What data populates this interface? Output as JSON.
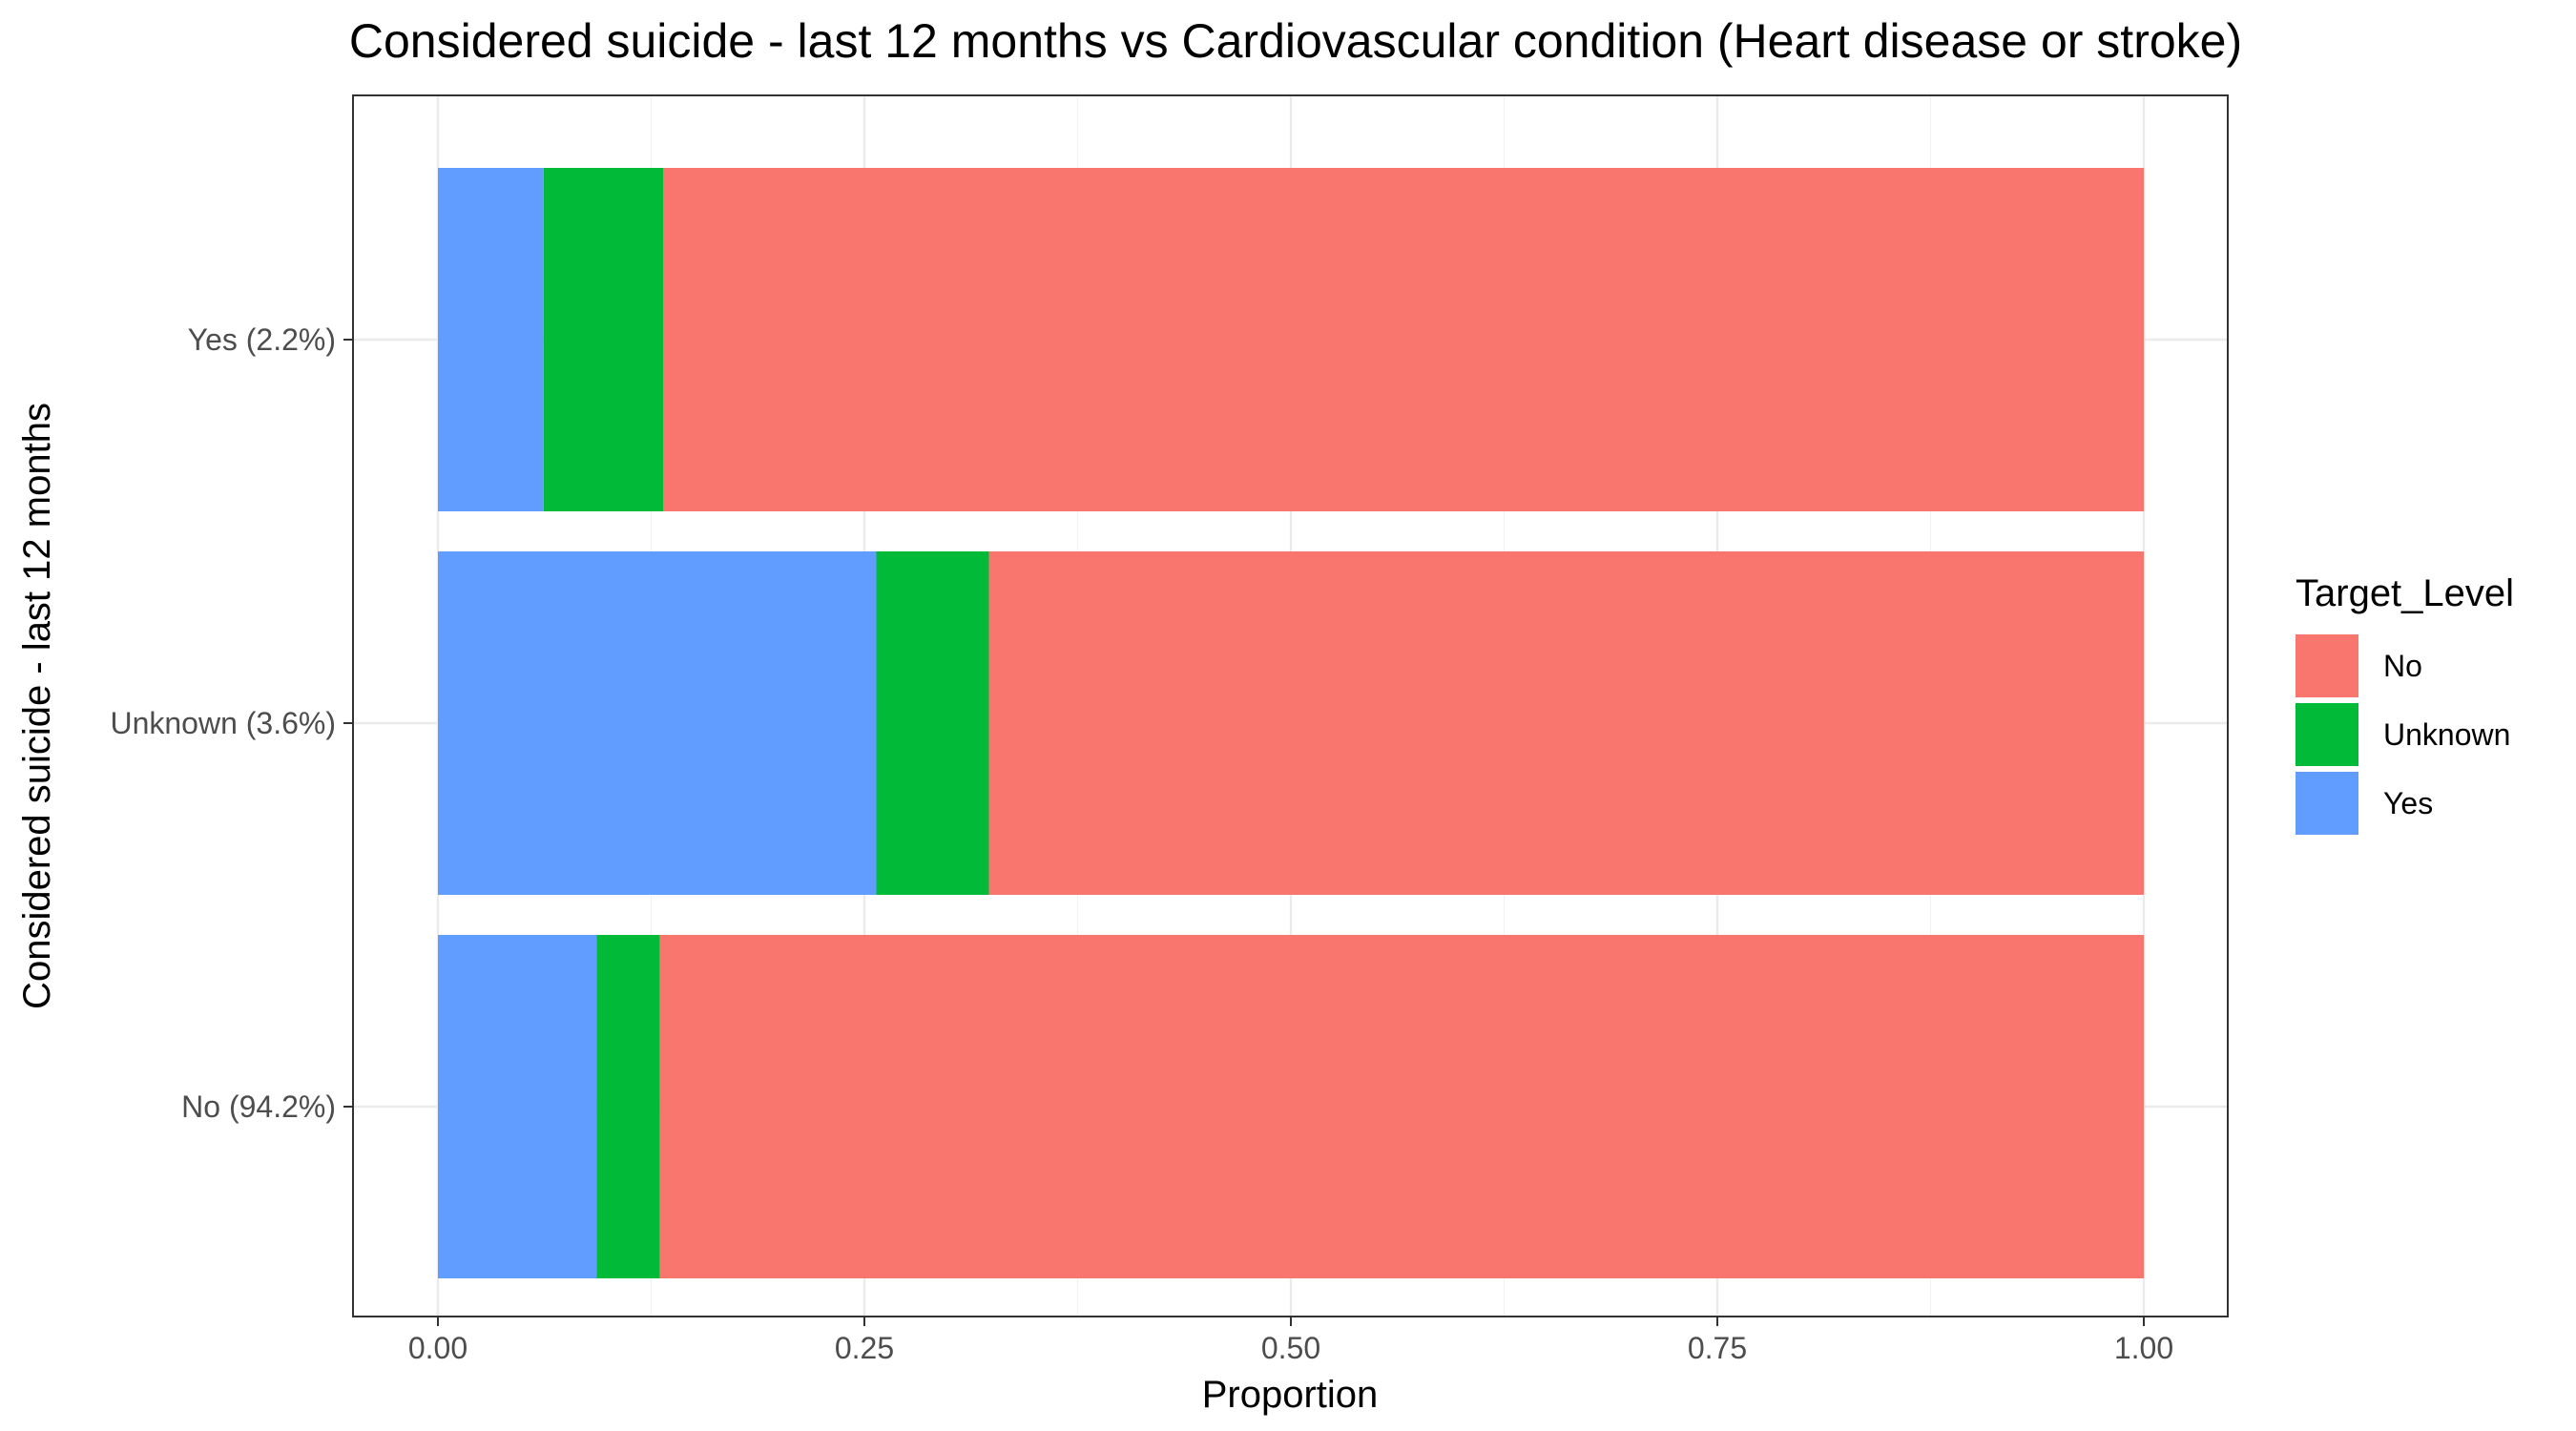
{
  "chart_data": {
    "type": "bar",
    "orientation": "horizontal",
    "stacked": true,
    "title": "Considered suicide - last 12 months vs Cardiovascular condition (Heart disease or stroke)",
    "xlabel": "Proportion",
    "ylabel": "Considered suicide - last 12 months",
    "xlim": [
      0,
      1
    ],
    "xticks": [
      0,
      0.25,
      0.5,
      0.75,
      1
    ],
    "xtick_labels": [
      "0.00",
      "0.25",
      "0.50",
      "0.75",
      "1.00"
    ],
    "categories": [
      "Yes (2.2%)",
      "Unknown (3.6%)",
      "No (94.2%)"
    ],
    "series": [
      {
        "name": "Yes",
        "color": "#619CFF",
        "values": [
          0.062,
          0.257,
          0.093
        ]
      },
      {
        "name": "Unknown",
        "color": "#00BA38",
        "values": [
          0.07,
          0.066,
          0.037
        ]
      },
      {
        "name": "No",
        "color": "#F8766D",
        "values": [
          0.868,
          0.677,
          0.87
        ]
      }
    ],
    "legend": {
      "title": "Target_Level",
      "placement": "right",
      "entries": [
        "No",
        "Unknown",
        "Yes"
      ]
    },
    "grid": true,
    "theme": "bw"
  }
}
